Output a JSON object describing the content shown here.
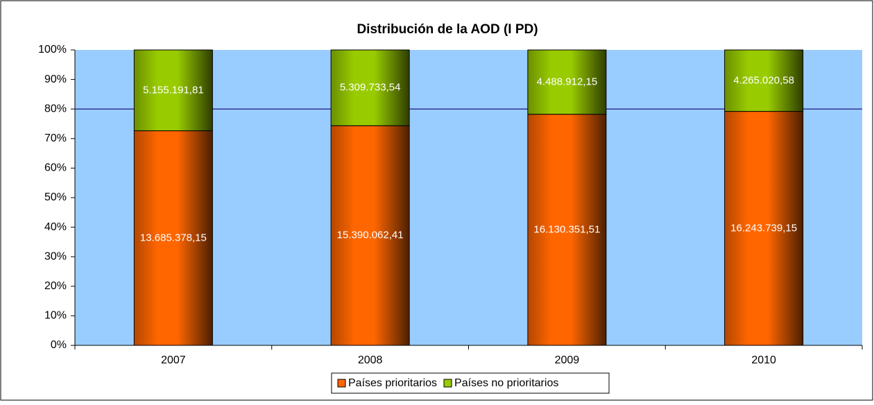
{
  "chart_data": {
    "type": "bar",
    "stacking": "percent",
    "title": "Distribución de la AOD (I PD)",
    "categories": [
      "2007",
      "2008",
      "2009",
      "2010"
    ],
    "series": [
      {
        "name": "Países prioritarios",
        "color": "#ff6600",
        "values": [
          13685378.15,
          15390062.41,
          16130351.51,
          16243739.15
        ],
        "value_labels": [
          "13.685.378,15",
          "15.390.062,41",
          "16.130.351,51",
          "16.243.739,15"
        ]
      },
      {
        "name": "Países no prioritarios",
        "color": "#99cc00",
        "values": [
          5155191.81,
          5309733.54,
          4488912.15,
          4265020.58
        ],
        "value_labels": [
          "5.155.191,81",
          "5.309.733,54",
          "4.488.912,15",
          "4.265.020,58"
        ]
      }
    ],
    "ylim": [
      0,
      100
    ],
    "yticks": [
      {
        "value": 0,
        "label": "0%"
      },
      {
        "value": 10,
        "label": "10%"
      },
      {
        "value": 20,
        "label": "20%"
      },
      {
        "value": 30,
        "label": "30%"
      },
      {
        "value": 40,
        "label": "40%"
      },
      {
        "value": 50,
        "label": "50%"
      },
      {
        "value": 60,
        "label": "60%"
      },
      {
        "value": 70,
        "label": "70%"
      },
      {
        "value": 80,
        "label": "80%"
      },
      {
        "value": 90,
        "label": "90%"
      },
      {
        "value": 100,
        "label": "100%"
      }
    ],
    "reference_line": 80,
    "reference_color": "#333399",
    "plot_background": "#99ccff",
    "legend": "bottom"
  }
}
